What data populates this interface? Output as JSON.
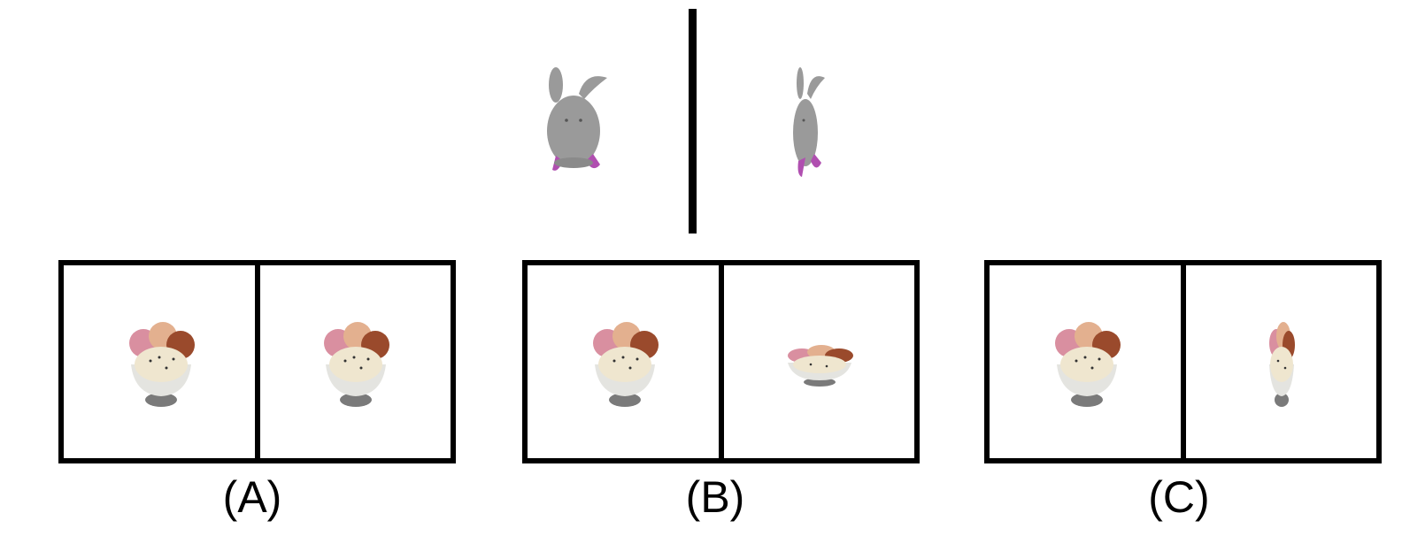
{
  "reference": {
    "left_object": "bunny",
    "right_object": "bunny"
  },
  "options": [
    {
      "label": "(A)",
      "left_object": "ice-cream-sundae",
      "right_object": "ice-cream-sundae"
    },
    {
      "label": "(B)",
      "left_object": "ice-cream-sundae",
      "right_object": "ice-cream-sundae"
    },
    {
      "label": "(C)",
      "left_object": "ice-cream-sundae",
      "right_object": "ice-cream-sundae"
    }
  ],
  "colors": {
    "bunny_body": "#9a9a9a",
    "bunny_feet": "#b04fb0",
    "bowl": "#e4e4e0",
    "stand": "#7a7a7a",
    "scoop_pink": "#d98fa0",
    "scoop_peach": "#e3b08f",
    "scoop_brown": "#9a4a2c",
    "scoop_vanilla": "#efe6cf"
  }
}
